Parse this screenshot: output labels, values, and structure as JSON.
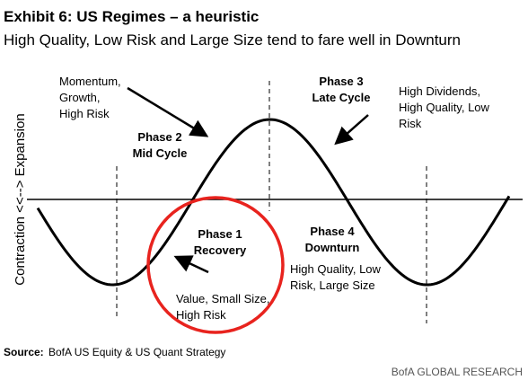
{
  "header": {
    "title": "Exhibit 6: US Regimes – a heuristic",
    "subtitle": "High Quality, Low Risk and Large Size tend to fare well in Downturn"
  },
  "axis_label": "Contraction <<--> Expansion",
  "labels": {
    "momentum": [
      "Momentum,",
      "Growth,",
      "High Risk"
    ],
    "phase2": [
      "Phase 2",
      "Mid Cycle"
    ],
    "phase3": [
      "Phase 3",
      "Late Cycle"
    ],
    "dividends": [
      "High Dividends,",
      "High Quality, Low",
      "Risk"
    ],
    "phase1": [
      "Phase 1",
      "Recovery"
    ],
    "value": [
      "Value, Small Size,",
      "High Risk"
    ],
    "phase4": [
      "Phase 4",
      "Downturn"
    ],
    "downturn": [
      "High Quality, Low",
      "Risk, Large Size"
    ]
  },
  "footer": {
    "source_label": "Source:",
    "source": "BofA US Equity & US Quant Strategy",
    "brand": "BofA GLOBAL RESEARCH"
  }
}
